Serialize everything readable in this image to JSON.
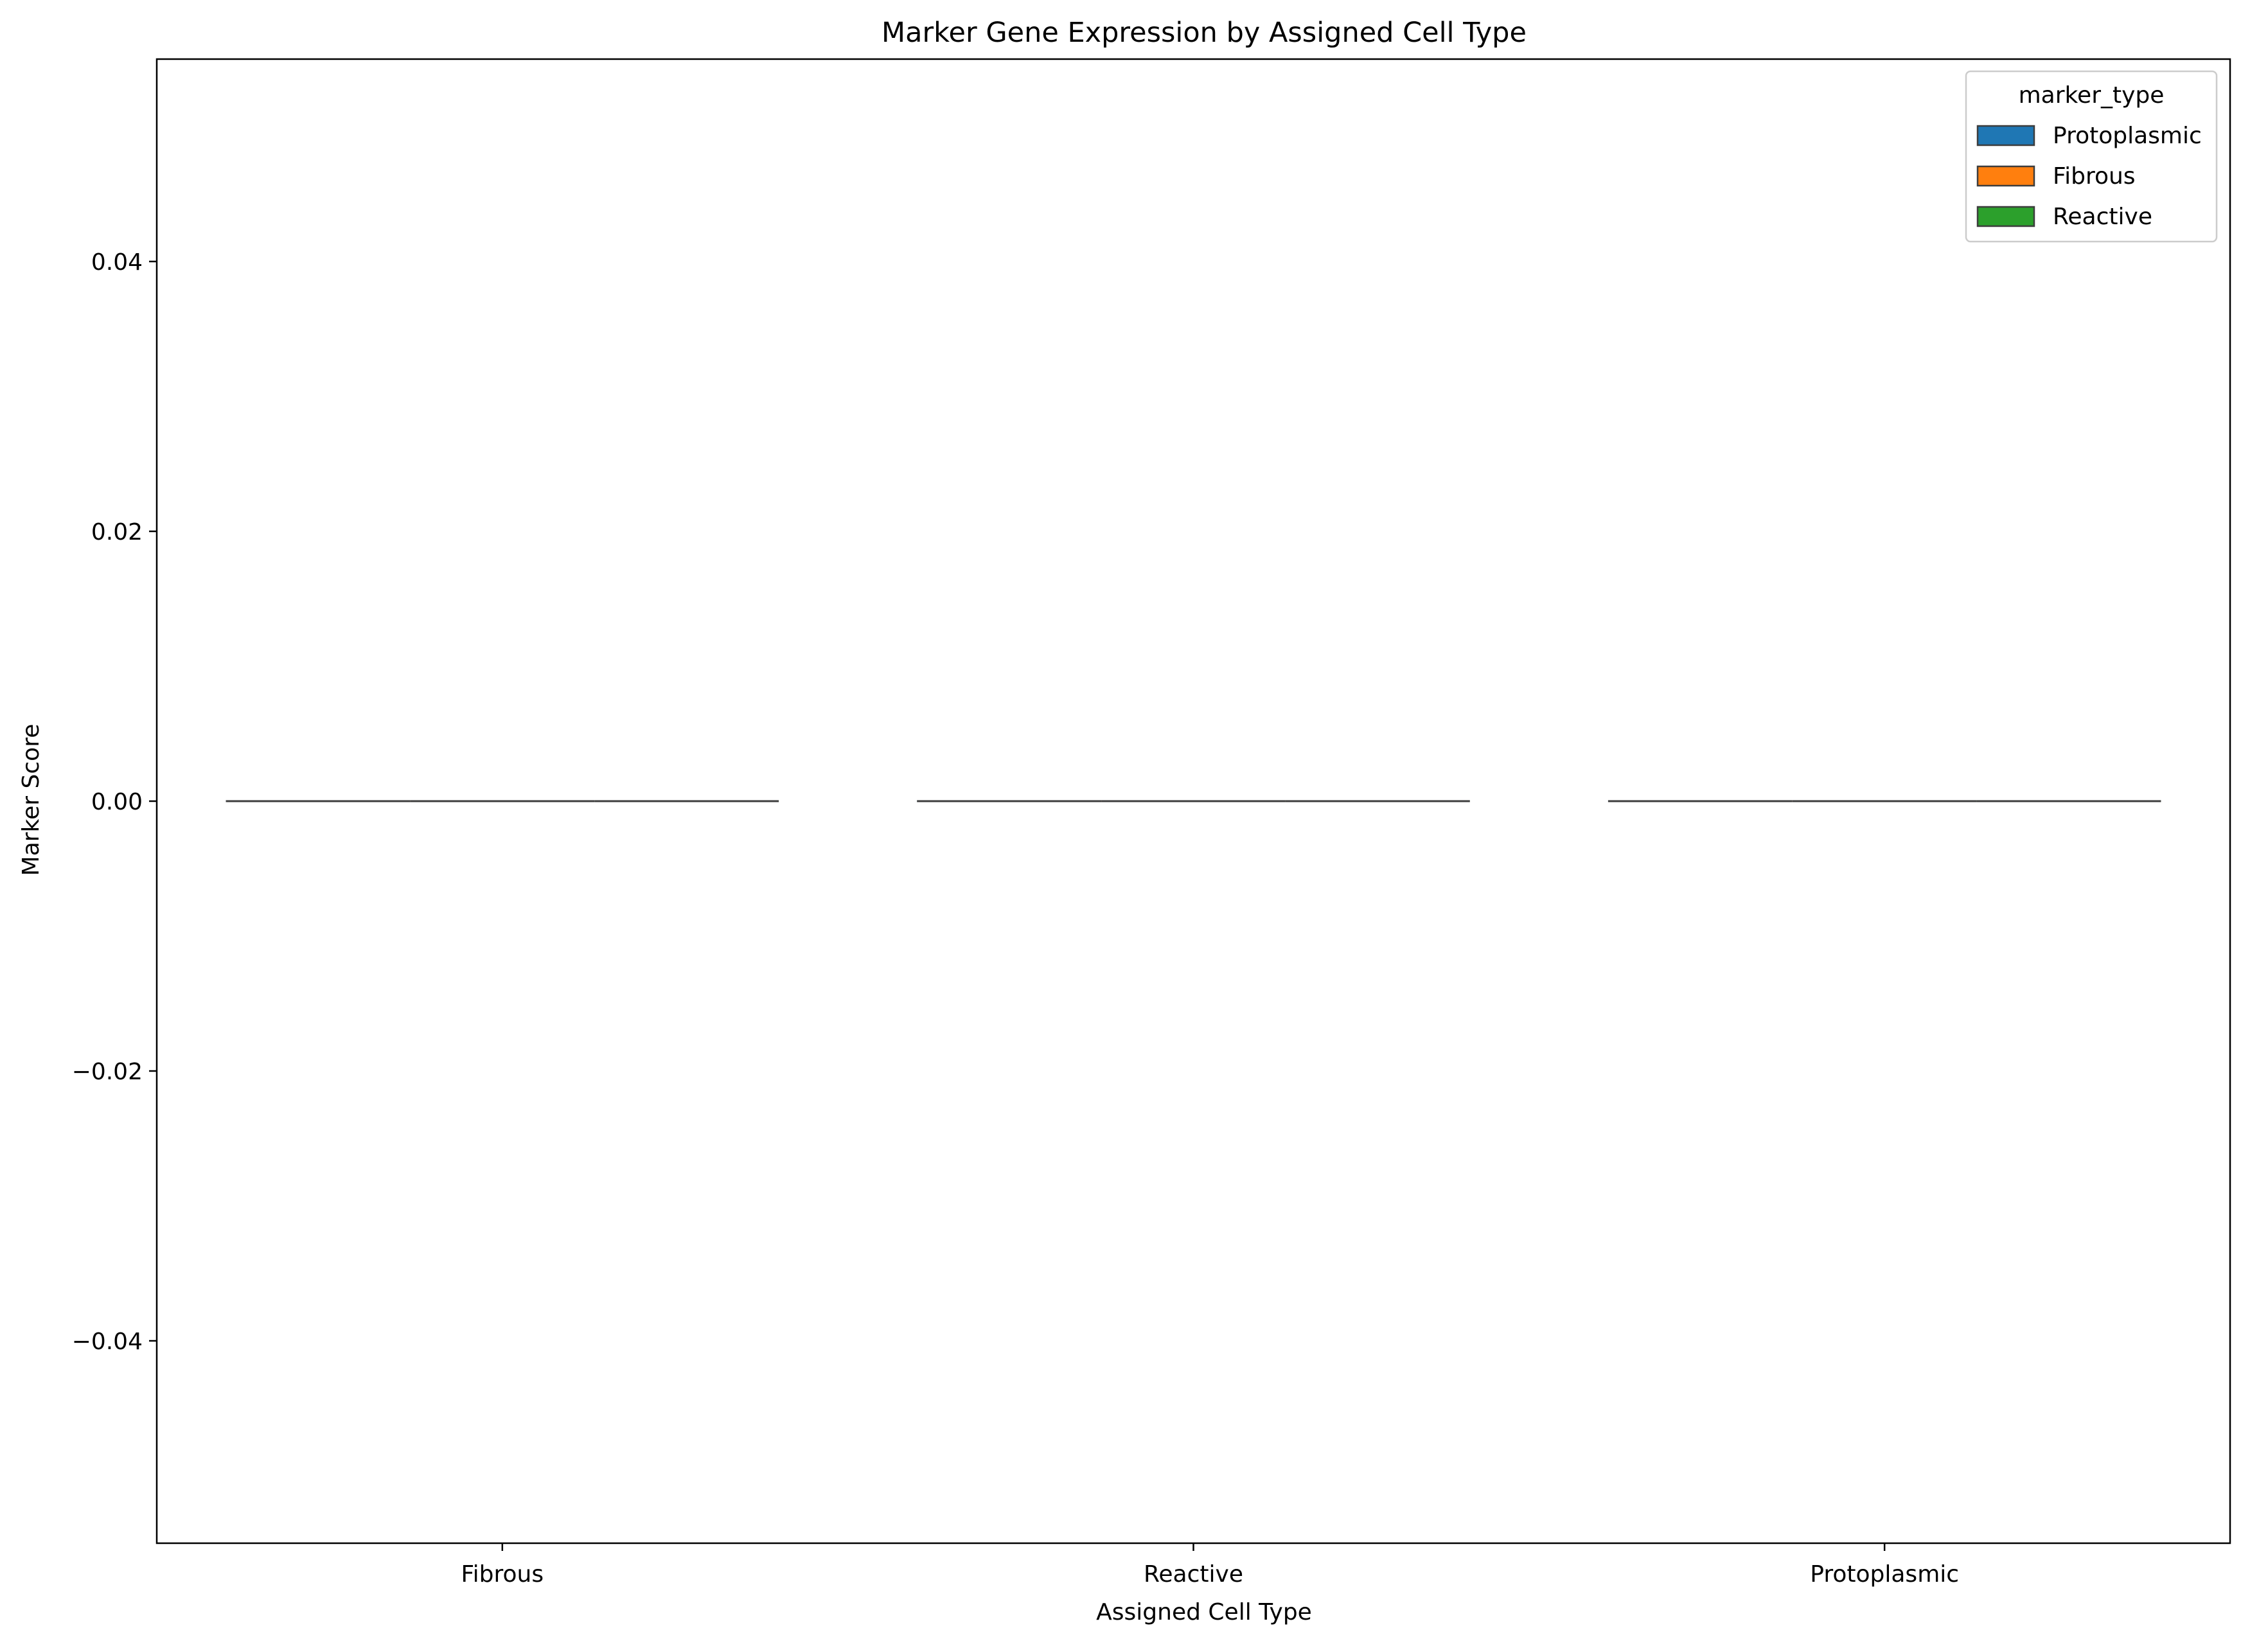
{
  "chart_data": {
    "type": "box",
    "title": "Marker Gene Expression by Assigned Cell Type",
    "xlabel": "Assigned Cell Type",
    "ylabel": "Marker Score",
    "categories": [
      "Fibrous",
      "Reactive",
      "Protoplasmic"
    ],
    "ylim": [
      -0.055,
      0.055
    ],
    "yticks": [
      -0.04,
      -0.02,
      0.0,
      0.02,
      0.04
    ],
    "ytick_labels": [
      "−0.04",
      "−0.02",
      "0.00",
      "0.02",
      "0.04"
    ],
    "grid": false,
    "legend": {
      "title": "marker_type",
      "placement": "upper right"
    },
    "series": [
      {
        "name": "Protoplasmic",
        "color": "#1f77b4",
        "values": [
          0,
          0,
          0
        ]
      },
      {
        "name": "Fibrous",
        "color": "#ff7f0e",
        "values": [
          0,
          0,
          0
        ]
      },
      {
        "name": "Reactive",
        "color": "#2ca02c",
        "values": [
          0,
          0,
          0
        ]
      }
    ],
    "box_edge_color": "#3d3d3d"
  }
}
